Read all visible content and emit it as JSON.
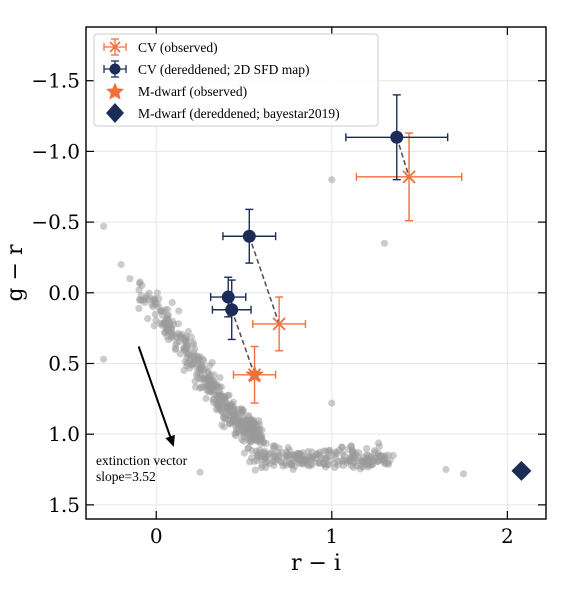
{
  "chart_data": {
    "type": "scatter",
    "xlabel": "r − i",
    "ylabel": "g − r",
    "xlim": [
      -0.4,
      2.22
    ],
    "ylim": [
      1.6,
      -1.88
    ],
    "y_inverted": true,
    "grid": true,
    "legend_position": "top-left",
    "x_ticks": [
      0,
      1,
      2
    ],
    "x_tick_labels": [
      "0",
      "1",
      "2"
    ],
    "y_ticks": [
      -1.5,
      -1.0,
      -0.5,
      0.0,
      0.5,
      1.0,
      1.5
    ],
    "y_tick_labels": [
      "−1.5",
      "−1.0",
      "−0.5",
      "0.0",
      "0.5",
      "1.0",
      "1.5"
    ],
    "colors": {
      "cv_observed": "#f2703d",
      "cv_dereddened": "#1b2d57",
      "mdwarf_observed": "#f2703d",
      "mdwarf_dereddened": "#1b2d57",
      "background": "#999999",
      "connector": "#555555"
    },
    "legend": [
      {
        "label": "CV (observed)",
        "marker": "x-errorbar",
        "color": "#f2703d"
      },
      {
        "label": "CV (dereddened; 2D SFD map)",
        "marker": "circle-errorbar",
        "color": "#1b2d57"
      },
      {
        "label": "M-dwarf (observed)",
        "marker": "star",
        "color": "#f2703d"
      },
      {
        "label": "M-dwarf (dereddened; bayestar2019)",
        "marker": "diamond",
        "color": "#1b2d57"
      }
    ],
    "cv_observed": [
      {
        "x": 1.44,
        "y": -0.82,
        "xerr": 0.3,
        "yerr": 0.31
      },
      {
        "x": 0.7,
        "y": 0.22,
        "xerr": 0.15,
        "yerr": 0.19
      },
      {
        "x": 0.56,
        "y": 0.58,
        "xerr": 0.12,
        "yerr": 0.2
      }
    ],
    "cv_dereddened": [
      {
        "x": 1.37,
        "y": -1.1,
        "xerr": 0.29,
        "yerr": 0.3
      },
      {
        "x": 0.53,
        "y": -0.4,
        "xerr": 0.15,
        "yerr": 0.19
      },
      {
        "x": 0.41,
        "y": 0.03,
        "xerr": 0.1,
        "yerr": 0.14
      },
      {
        "x": 0.43,
        "y": 0.12,
        "xerr": 0.11,
        "yerr": 0.21
      }
    ],
    "connections": [
      {
        "from": [
          1.37,
          -1.1
        ],
        "to": [
          1.44,
          -0.82
        ]
      },
      {
        "from": [
          0.53,
          -0.4
        ],
        "to": [
          0.7,
          0.22
        ]
      },
      {
        "from": [
          0.43,
          0.12
        ],
        "to": [
          0.56,
          0.58
        ]
      }
    ],
    "mdwarf_observed": [
      {
        "x": 0.56,
        "y": 0.58
      }
    ],
    "mdwarf_dereddened": [
      {
        "x": 2.08,
        "y": 1.26
      }
    ],
    "background_locus_outliers": [
      {
        "x": -0.3,
        "y": -0.47
      },
      {
        "x": -0.3,
        "y": 0.47
      },
      {
        "x": 1.0,
        "y": -0.8
      },
      {
        "x": 1.3,
        "y": -0.35
      },
      {
        "x": -0.2,
        "y": -0.2
      },
      {
        "x": -0.15,
        "y": -0.1
      },
      {
        "x": -0.08,
        "y": 0.05
      },
      {
        "x": 1.0,
        "y": 0.78
      },
      {
        "x": 0.25,
        "y": 1.27
      },
      {
        "x": 1.65,
        "y": 1.25
      },
      {
        "x": 1.75,
        "y": 1.28
      },
      {
        "x": 0.05,
        "y": 0.12
      }
    ],
    "extinction_vector": {
      "label_lines": [
        "extinction vector",
        "slope=3.52"
      ],
      "from": [
        -0.1,
        0.38
      ],
      "to": [
        0.1,
        1.09
      ]
    }
  }
}
